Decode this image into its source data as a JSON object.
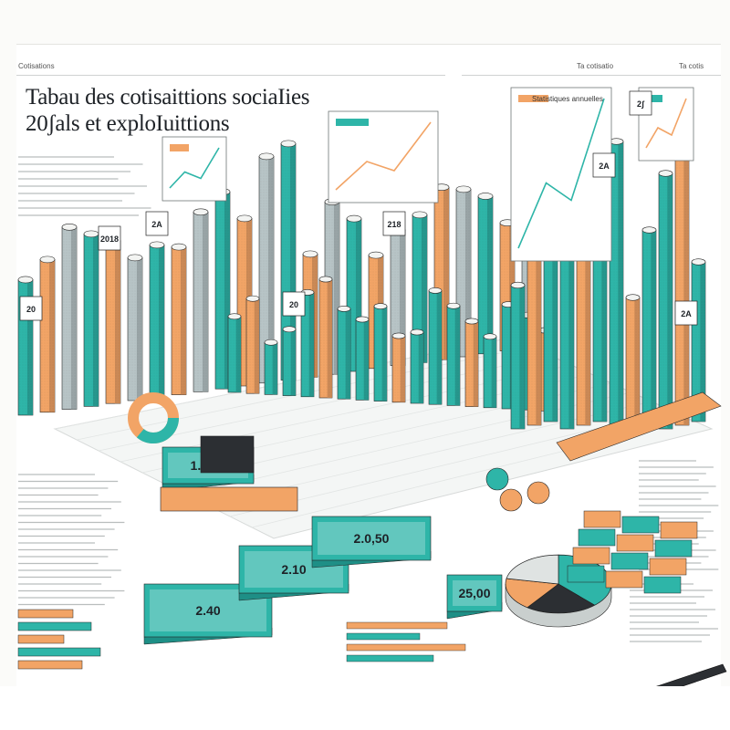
{
  "header": {
    "left_label": "Cotisations",
    "mid_label": "Ta cotisatio",
    "right_label": "Ta cotis"
  },
  "title": {
    "line1": "Tabau des cotisaittions sociaIies",
    "line2": "20ʃals et exploIuittions"
  },
  "panel_heading": "Statistiques annuelles",
  "callout_labels": [
    "20",
    "2018",
    "2A",
    "20",
    "218",
    "2A",
    "2ʃ",
    "2A"
  ],
  "chart_data": {
    "type": "bar",
    "series_colors": {
      "teal": "#2eb5a8",
      "orange": "#f2a466",
      "grey": "#b7c4c6"
    },
    "back_row_heights": [
      0.55,
      0.62,
      0.74,
      0.7,
      0.66,
      0.58,
      0.62,
      0.6,
      0.73,
      0.8,
      0.68,
      0.92,
      0.96,
      0.5,
      0.7,
      0.62,
      0.46,
      0.55,
      0.6,
      0.7,
      0.68,
      0.64,
      0.52,
      0.74
    ],
    "front_row_heights": [
      0.32,
      0.4,
      0.22,
      0.28,
      0.44,
      0.5,
      0.38,
      0.34,
      0.4,
      0.28,
      0.3,
      0.48,
      0.42,
      0.36,
      0.3,
      0.44,
      0.4,
      0.34
    ],
    "right_group_heights": [
      0.45,
      0.62,
      0.82,
      1.0,
      0.55,
      0.72,
      0.9,
      0.4,
      0.6,
      0.8,
      0.94,
      0.5
    ],
    "pie_values": [
      38,
      22,
      18,
      22
    ],
    "pie_small_values": [
      55,
      25,
      20
    ],
    "cards": [
      "2.40",
      "1.5,60",
      "2.10",
      "2.0,50",
      "25,00"
    ]
  },
  "colors": {
    "teal": "#2eb5a8",
    "teal_dark": "#1e8f86",
    "orange": "#f2a466",
    "orange_dark": "#d9834a",
    "grey": "#b7c4c6",
    "ink": "#1d2126"
  }
}
